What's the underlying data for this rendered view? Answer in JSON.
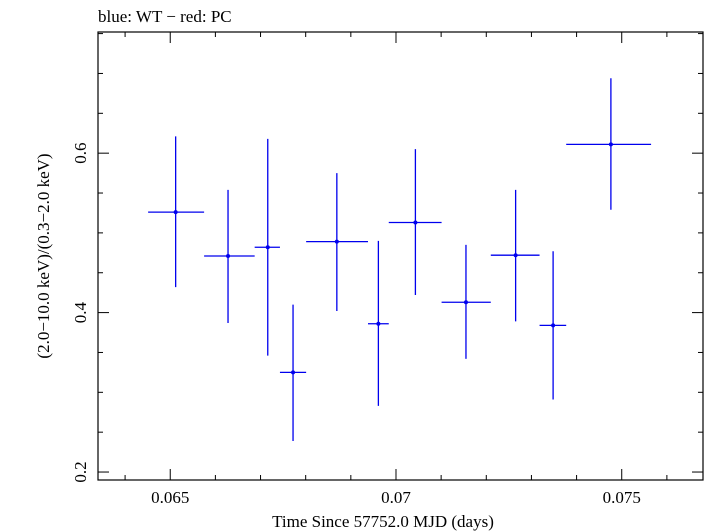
{
  "chart_data": {
    "type": "scatter",
    "title": "blue: WT − red: PC",
    "xlabel": "Time Since 57752.0 MJD (days)",
    "ylabel": "(2.0−10.0 keV)/(0.3−2.0 keV)",
    "xlim": [
      0.0634,
      0.0768
    ],
    "ylim": [
      0.19,
      0.752
    ],
    "xticks": [
      {
        "value": 0.065,
        "label": "0.065"
      },
      {
        "value": 0.07,
        "label": "0.07"
      },
      {
        "value": 0.075,
        "label": "0.075"
      }
    ],
    "yticks": [
      {
        "value": 0.2,
        "label": "0.2"
      },
      {
        "value": 0.4,
        "label": "0.4"
      },
      {
        "value": 0.6,
        "label": "0.6"
      }
    ],
    "grid": false,
    "series": [
      {
        "color": "#0000ee",
        "points": [
          {
            "x": 0.06512,
            "y": 0.526,
            "xerr_lo": 0.06451,
            "xerr_hi": 0.06575,
            "yerr_lo": 0.432,
            "yerr_hi": 0.621
          },
          {
            "x": 0.06628,
            "y": 0.471,
            "xerr_lo": 0.06575,
            "xerr_hi": 0.06687,
            "yerr_lo": 0.387,
            "yerr_hi": 0.554
          },
          {
            "x": 0.06716,
            "y": 0.482,
            "xerr_lo": 0.06687,
            "xerr_hi": 0.06743,
            "yerr_lo": 0.346,
            "yerr_hi": 0.618
          },
          {
            "x": 0.06772,
            "y": 0.325,
            "xerr_lo": 0.06743,
            "xerr_hi": 0.06801,
            "yerr_lo": 0.239,
            "yerr_hi": 0.41
          },
          {
            "x": 0.06869,
            "y": 0.489,
            "xerr_lo": 0.06801,
            "xerr_hi": 0.06938,
            "yerr_lo": 0.402,
            "yerr_hi": 0.575
          },
          {
            "x": 0.06961,
            "y": 0.386,
            "xerr_lo": 0.06938,
            "xerr_hi": 0.06984,
            "yerr_lo": 0.283,
            "yerr_hi": 0.49
          },
          {
            "x": 0.07043,
            "y": 0.513,
            "xerr_lo": 0.06984,
            "xerr_hi": 0.07101,
            "yerr_lo": 0.422,
            "yerr_hi": 0.605
          },
          {
            "x": 0.07155,
            "y": 0.413,
            "xerr_lo": 0.07101,
            "xerr_hi": 0.0721,
            "yerr_lo": 0.342,
            "yerr_hi": 0.485
          },
          {
            "x": 0.07265,
            "y": 0.472,
            "xerr_lo": 0.0721,
            "xerr_hi": 0.07318,
            "yerr_lo": 0.389,
            "yerr_hi": 0.554
          },
          {
            "x": 0.07348,
            "y": 0.384,
            "xerr_lo": 0.07318,
            "xerr_hi": 0.07377,
            "yerr_lo": 0.291,
            "yerr_hi": 0.477
          },
          {
            "x": 0.07476,
            "y": 0.611,
            "xerr_lo": 0.07377,
            "xerr_hi": 0.07565,
            "yerr_lo": 0.529,
            "yerr_hi": 0.694
          }
        ]
      }
    ]
  }
}
